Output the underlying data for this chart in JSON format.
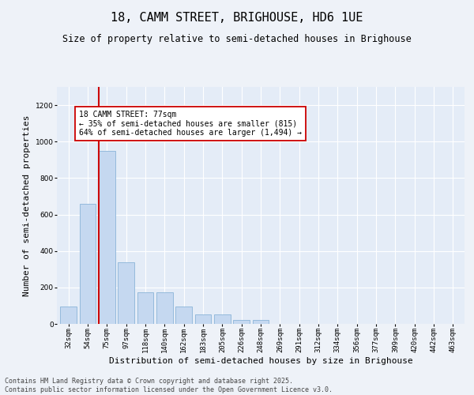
{
  "title": "18, CAMM STREET, BRIGHOUSE, HD6 1UE",
  "subtitle": "Size of property relative to semi-detached houses in Brighouse",
  "xlabel": "Distribution of semi-detached houses by size in Brighouse",
  "ylabel": "Number of semi-detached properties",
  "bins": [
    "32sqm",
    "54sqm",
    "75sqm",
    "97sqm",
    "118sqm",
    "140sqm",
    "162sqm",
    "183sqm",
    "205sqm",
    "226sqm",
    "248sqm",
    "269sqm",
    "291sqm",
    "312sqm",
    "334sqm",
    "356sqm",
    "377sqm",
    "399sqm",
    "420sqm",
    "442sqm",
    "463sqm"
  ],
  "values": [
    95,
    660,
    950,
    340,
    175,
    175,
    95,
    50,
    50,
    20,
    20,
    0,
    0,
    0,
    0,
    0,
    0,
    0,
    0,
    0,
    0
  ],
  "bar_color": "#c5d8f0",
  "bar_edge_color": "#8ab4d8",
  "vline_color": "#cc0000",
  "vline_x_index": 2,
  "annotation_text": "18 CAMM STREET: 77sqm\n← 35% of semi-detached houses are smaller (815)\n64% of semi-detached houses are larger (1,494) →",
  "annotation_box_facecolor": "#ffffff",
  "annotation_box_edgecolor": "#cc0000",
  "ylim": [
    0,
    1300
  ],
  "yticks": [
    0,
    200,
    400,
    600,
    800,
    1000,
    1200
  ],
  "footer_text": "Contains HM Land Registry data © Crown copyright and database right 2025.\nContains public sector information licensed under the Open Government Licence v3.0.",
  "bg_color": "#eef2f8",
  "plot_bg_color": "#e4ecf7",
  "title_fontsize": 11,
  "subtitle_fontsize": 8.5,
  "axis_label_fontsize": 8,
  "tick_fontsize": 6.5,
  "annotation_fontsize": 7,
  "footer_fontsize": 6
}
